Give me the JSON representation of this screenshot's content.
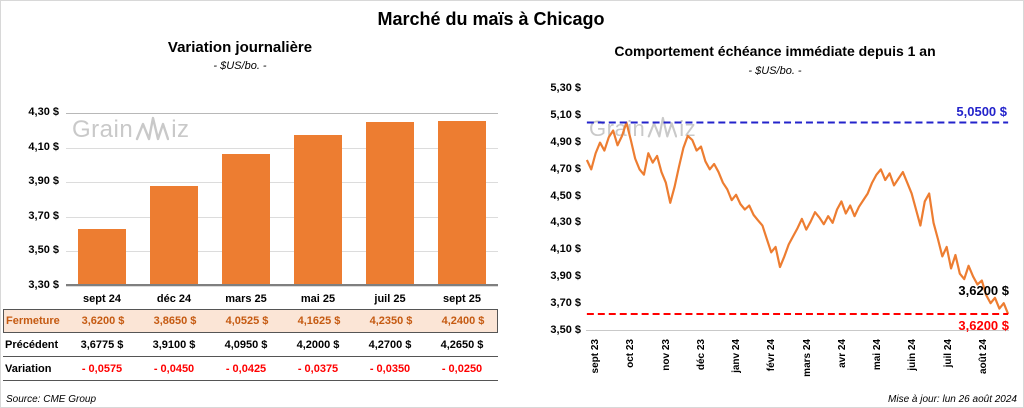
{
  "page": {
    "title": "Marché du maïs à Chicago",
    "source": "Source: CME Group",
    "updated": "Mise à jour: lun 26 août 2024",
    "watermark": {
      "text": "GrainWiz",
      "part1": "Grain",
      "part2": "iz"
    }
  },
  "colors": {
    "orange": "#ED7D31",
    "peach_row": "#FBE5D6",
    "brown_text": "#C55A11",
    "red": "#FF0000",
    "blue": "#2323CB",
    "grid": "#DCDCDC",
    "watermark_gray": "#C9C9C9"
  },
  "table": {
    "columns": [
      "sept 24",
      "déc 24",
      "mars 25",
      "mai 25",
      "juil 25",
      "sept 25"
    ],
    "rows": [
      {
        "kind": "close",
        "label": "Fermeture",
        "values": [
          "3,6200  $",
          "3,8650  $",
          "4,0525  $",
          "4,1625  $",
          "4,2350  $",
          "4,2400  $"
        ]
      },
      {
        "kind": "prev",
        "label": "Précédent",
        "values": [
          "3,6775  $",
          "3,9100  $",
          "4,0950  $",
          "4,2000  $",
          "4,2700  $",
          "4,2650  $"
        ]
      },
      {
        "kind": "var",
        "label": "Variation",
        "values": [
          "- 0,0575",
          "- 0,0450",
          "- 0,0425",
          "- 0,0375",
          "- 0,0350",
          "- 0,0250"
        ]
      }
    ]
  },
  "chart_data": [
    {
      "type": "bar",
      "title": "Variation journalière",
      "subtitle": "- $US/bo. -",
      "categories": [
        "sept 24",
        "déc 24",
        "mars 25",
        "mai 25",
        "juil 25",
        "sept 25"
      ],
      "values": [
        3.62,
        3.865,
        4.0525,
        4.1625,
        4.235,
        4.24
      ],
      "ylim": [
        3.3,
        4.3
      ],
      "bar_color": "#ED7D31",
      "grid": true,
      "yticks": [
        {
          "v": 4.3,
          "label": "4,30 $"
        },
        {
          "v": 4.1,
          "label": "4,10 $"
        },
        {
          "v": 3.9,
          "label": "3,90 $"
        },
        {
          "v": 3.7,
          "label": "3,70 $"
        },
        {
          "v": 3.5,
          "label": "3,50 $"
        },
        {
          "v": 3.3,
          "label": "3,30 $"
        }
      ]
    },
    {
      "type": "line",
      "title": "Comportement échéance immédiate depuis 1 an",
      "subtitle": "- $US/bo. -",
      "ylim": [
        3.5,
        5.3
      ],
      "line_color": "#ED7D31",
      "grid": false,
      "yticks": [
        {
          "v": 5.3,
          "label": "5,30 $"
        },
        {
          "v": 5.1,
          "label": "5,10 $"
        },
        {
          "v": 4.9,
          "label": "4,90 $"
        },
        {
          "v": 4.7,
          "label": "4,70 $"
        },
        {
          "v": 4.5,
          "label": "4,50 $"
        },
        {
          "v": 4.3,
          "label": "4,30 $"
        },
        {
          "v": 4.1,
          "label": "4,10 $"
        },
        {
          "v": 3.9,
          "label": "3,90 $"
        },
        {
          "v": 3.7,
          "label": "3,70 $"
        },
        {
          "v": 3.5,
          "label": "3,50 $"
        }
      ],
      "xticks": [
        "sept 23",
        "oct 23",
        "nov 23",
        "déc 23",
        "janv 24",
        "févr 24",
        "mars 24",
        "avr 24",
        "mai 24",
        "juin 24",
        "juil 24",
        "août 24"
      ],
      "series": [
        {
          "name": "échéance immédiate",
          "values": [
            4.77,
            4.7,
            4.82,
            4.9,
            4.84,
            4.94,
            4.99,
            4.88,
            4.95,
            5.05,
            4.92,
            4.78,
            4.7,
            4.66,
            4.82,
            4.75,
            4.8,
            4.68,
            4.6,
            4.45,
            4.57,
            4.72,
            4.86,
            4.95,
            4.92,
            4.84,
            4.87,
            4.76,
            4.7,
            4.74,
            4.68,
            4.6,
            4.55,
            4.47,
            4.51,
            4.44,
            4.4,
            4.43,
            4.36,
            4.32,
            4.28,
            4.18,
            4.08,
            4.12,
            3.97,
            4.05,
            4.14,
            4.2,
            4.26,
            4.33,
            4.25,
            4.31,
            4.38,
            4.34,
            4.29,
            4.35,
            4.3,
            4.4,
            4.46,
            4.37,
            4.43,
            4.35,
            4.42,
            4.47,
            4.52,
            4.6,
            4.66,
            4.7,
            4.62,
            4.67,
            4.58,
            4.63,
            4.68,
            4.6,
            4.52,
            4.4,
            4.28,
            4.46,
            4.52,
            4.3,
            4.18,
            4.05,
            4.12,
            3.96,
            4.06,
            3.92,
            3.88,
            3.98,
            3.9,
            3.84,
            3.87,
            3.76,
            3.7,
            3.74,
            3.66,
            3.7,
            3.62
          ]
        }
      ],
      "ref_lines": [
        {
          "value": 5.05,
          "label": "5,0500 $",
          "color": "blue",
          "style": "dashed"
        },
        {
          "value": 3.62,
          "label": "3,6200 $",
          "color": "red",
          "style": "dashed"
        }
      ],
      "last_point_label": "3,6200 $"
    }
  ]
}
